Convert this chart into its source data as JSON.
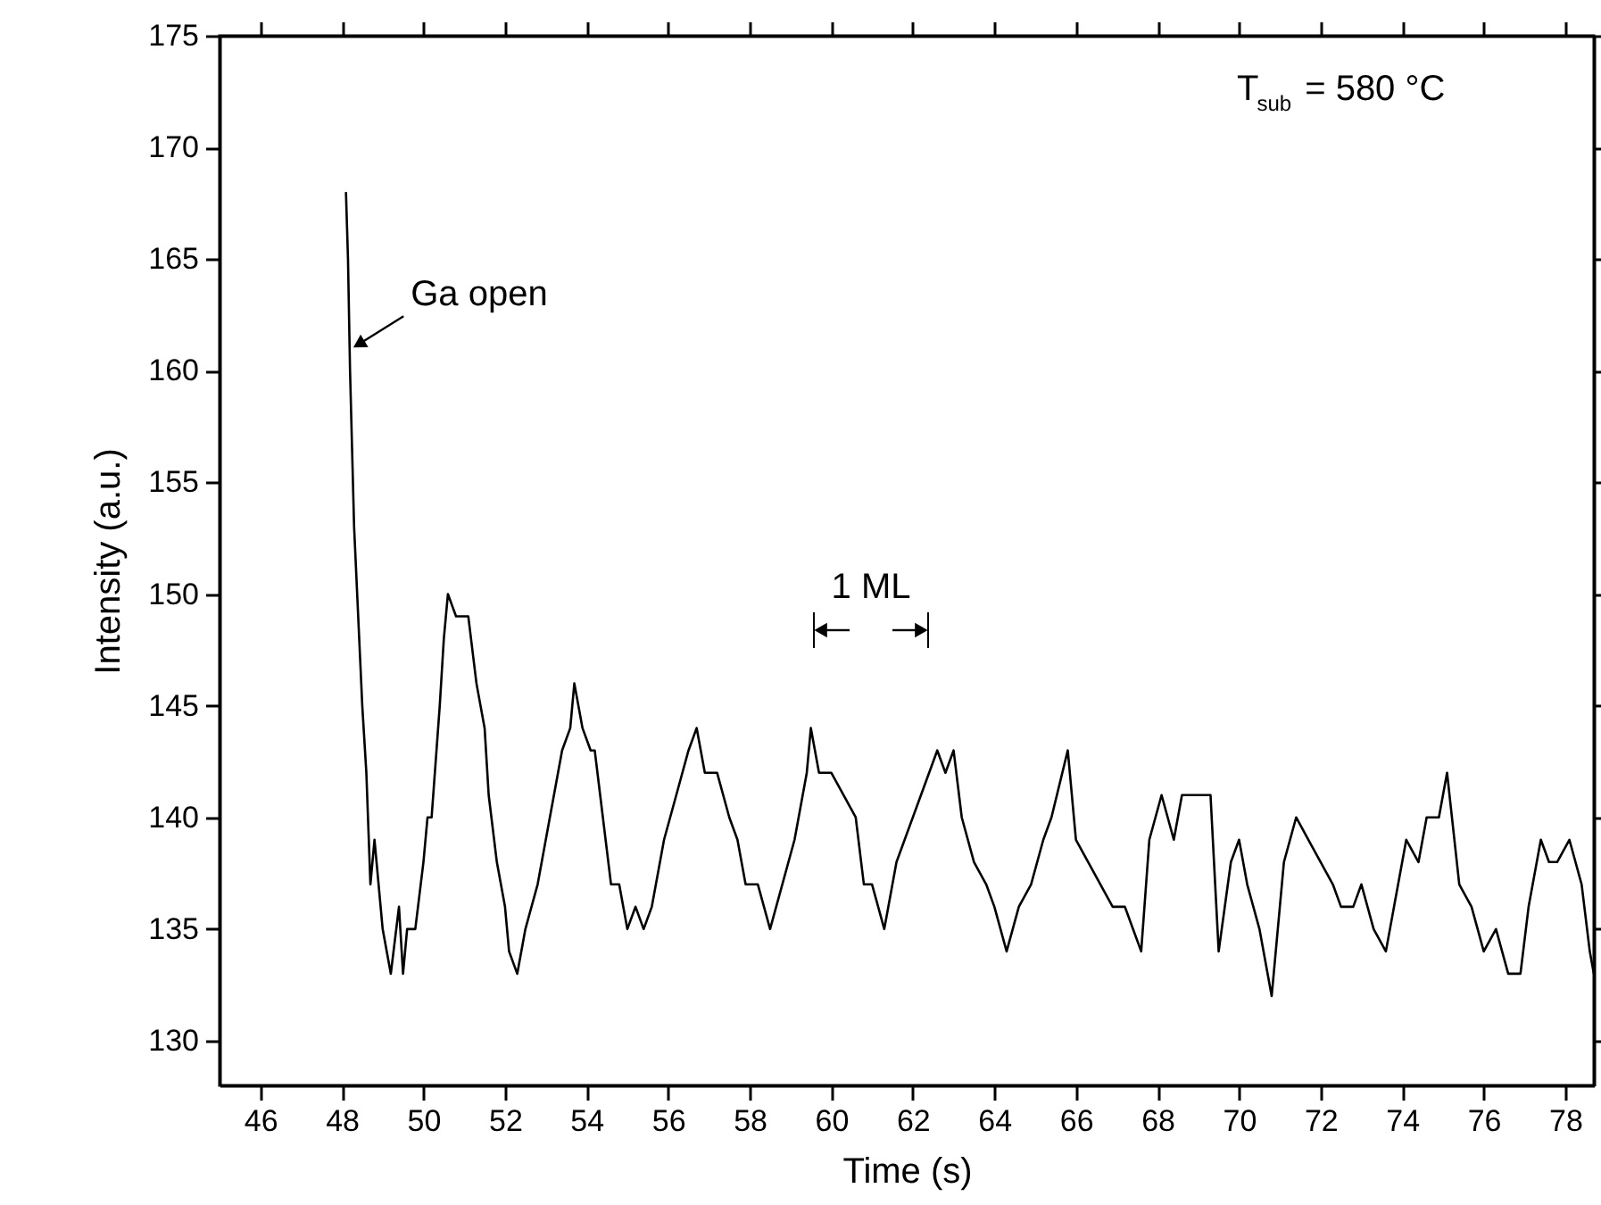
{
  "chart_data": {
    "type": "line",
    "xlabel": "Time (s)",
    "ylabel": "Intensity (a.u.)",
    "xlim": [
      45,
      78.7
    ],
    "ylim": [
      128,
      175
    ],
    "xticks": [
      46,
      48,
      50,
      52,
      54,
      56,
      58,
      60,
      62,
      64,
      66,
      68,
      70,
      72,
      74,
      76,
      78
    ],
    "yticks": [
      130,
      135,
      140,
      145,
      150,
      155,
      160,
      165,
      170,
      175
    ],
    "grid": false,
    "marker": "none",
    "line_style": "solid",
    "series": [
      {
        "color": "#000000",
        "x": [
          48.1,
          48.15,
          48.2,
          48.3,
          48.5,
          48.6,
          48.7,
          48.8,
          49.0,
          49.2,
          49.4,
          49.5,
          49.6,
          49.8,
          50.0,
          50.1,
          50.2,
          50.4,
          50.5,
          50.6,
          50.8,
          51.1,
          51.3,
          51.5,
          51.6,
          51.8,
          52.0,
          52.1,
          52.3,
          52.5,
          52.8,
          53.0,
          53.2,
          53.4,
          53.6,
          53.7,
          53.9,
          54.1,
          54.2,
          54.4,
          54.6,
          54.8,
          55.0,
          55.2,
          55.4,
          55.6,
          55.9,
          56.2,
          56.5,
          56.7,
          56.9,
          57.2,
          57.5,
          57.7,
          57.9,
          58.2,
          58.5,
          58.8,
          59.1,
          59.4,
          59.5,
          59.7,
          60.0,
          60.3,
          60.6,
          60.8,
          61.0,
          61.3,
          61.6,
          61.8,
          62.2,
          62.6,
          62.8,
          63.0,
          63.2,
          63.5,
          63.8,
          64.0,
          64.3,
          64.6,
          64.9,
          65.2,
          65.4,
          65.8,
          66.0,
          66.3,
          66.6,
          66.9,
          67.2,
          67.6,
          67.8,
          68.1,
          68.4,
          68.6,
          69.0,
          69.3,
          69.5,
          69.8,
          70.0,
          70.2,
          70.5,
          70.8,
          71.1,
          71.4,
          71.7,
          72.0,
          72.3,
          72.5,
          72.8,
          73.0,
          73.3,
          73.6,
          73.8,
          74.1,
          74.4,
          74.6,
          74.9,
          75.1,
          75.4,
          75.7,
          76.0,
          76.3,
          76.6,
          76.9,
          77.1,
          77.4,
          77.6,
          77.8,
          78.1,
          78.4,
          78.6,
          78.7
        ],
        "values": [
          168,
          165,
          160,
          153,
          145,
          142,
          137,
          139,
          135,
          133,
          136,
          133,
          135,
          135,
          138,
          140,
          140,
          145,
          148,
          150,
          149,
          149,
          146,
          144,
          141,
          138,
          136,
          134,
          133,
          135,
          137,
          139,
          141,
          143,
          144,
          146,
          144,
          143,
          143,
          140,
          137,
          137,
          135,
          136,
          135,
          136,
          139,
          141,
          143,
          144,
          142,
          142,
          140,
          139,
          137,
          137,
          135,
          137,
          139,
          142,
          144,
          142,
          142,
          141,
          140,
          137,
          137,
          135,
          138,
          139,
          141,
          143,
          142,
          143,
          140,
          138,
          137,
          136,
          134,
          136,
          137,
          139,
          140,
          143,
          139,
          138,
          137,
          136,
          136,
          134,
          139,
          141,
          139,
          141,
          141,
          141,
          134,
          138,
          139,
          137,
          135,
          132,
          138,
          140,
          139,
          138,
          137,
          136,
          136,
          137,
          135,
          134,
          136,
          139,
          138,
          140,
          140,
          142,
          137,
          136,
          134,
          135,
          133,
          133,
          136,
          139,
          138,
          138,
          139,
          137,
          134,
          133
        ]
      }
    ],
    "annotations": [
      {
        "text": "Ga open",
        "x": 48.2,
        "y": 161
      },
      "1 ML",
      "T$_{sub}$ = 580 °C"
    ]
  }
}
